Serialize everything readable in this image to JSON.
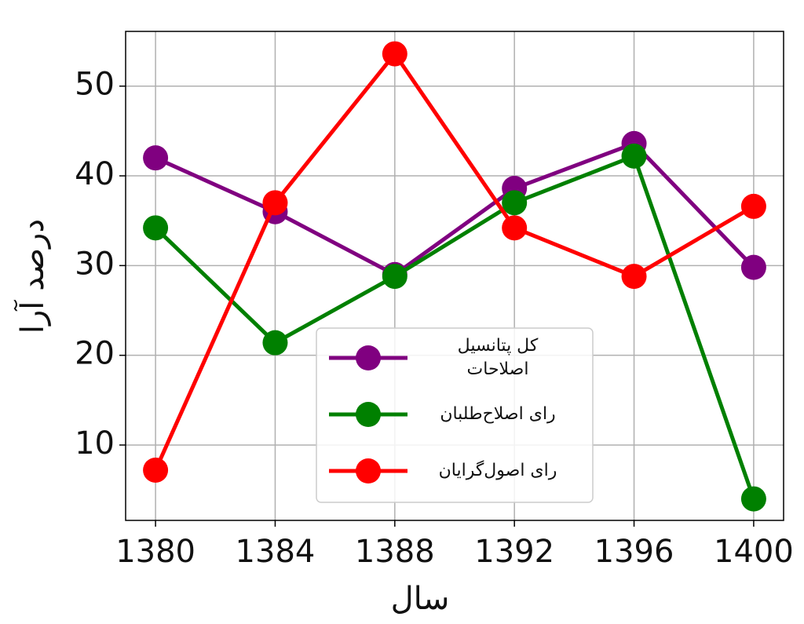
{
  "chart_data": {
    "type": "line",
    "x": [
      1380,
      1384,
      1388,
      1392,
      1396,
      1400
    ],
    "series": [
      {
        "name": "کل پتانسیل\nاصلاحات",
        "color": "#800080",
        "values": [
          42.0,
          36.0,
          29.0,
          38.6,
          43.6,
          29.8
        ]
      },
      {
        "name": "رای اصلاح‌طلبان",
        "color": "#008000",
        "values": [
          34.2,
          21.4,
          28.8,
          37.0,
          42.2,
          4.0
        ]
      },
      {
        "name": "رای اصول‌گرایان",
        "color": "#ff0000",
        "values": [
          7.2,
          37.0,
          53.6,
          34.2,
          28.8,
          36.6
        ]
      }
    ],
    "xlabel": "سال",
    "ylabel": "درصد آرا",
    "xlim": [
      1379,
      1401
    ],
    "xticks": [
      1380,
      1384,
      1388,
      1392,
      1396,
      1400
    ],
    "ylim": [
      1.6,
      56.1
    ],
    "yticks": [
      10,
      20,
      30,
      40,
      50
    ],
    "grid": true,
    "legend": "lower center"
  }
}
